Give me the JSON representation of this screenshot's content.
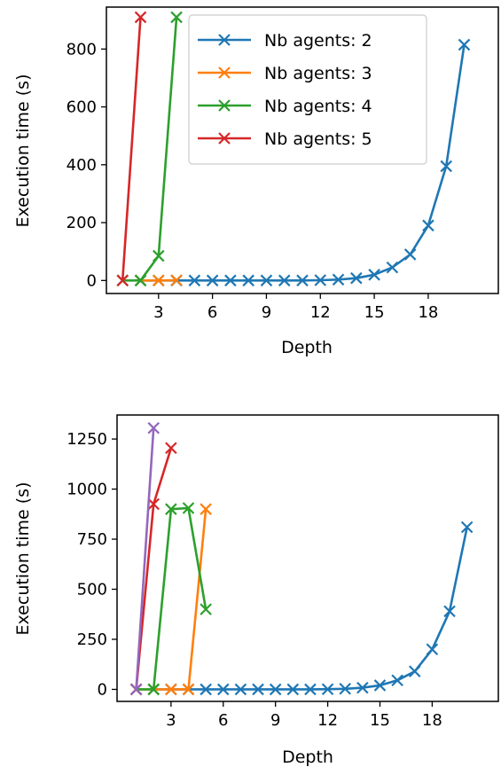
{
  "chart_data": [
    {
      "type": "line",
      "xlabel": "Depth",
      "ylabel": "Execution time (s)",
      "xlim": [
        0.1,
        21.9
      ],
      "ylim": [
        -45,
        945
      ],
      "xticks": [
        3,
        6,
        9,
        12,
        15,
        18
      ],
      "yticks": [
        0,
        200,
        400,
        600,
        800
      ],
      "grid": false,
      "legend": {
        "placement": "top-right",
        "entries": [
          "Nb agents: 2",
          "Nb agents: 3",
          "Nb agents: 4",
          "Nb agents: 5"
        ]
      },
      "series": [
        {
          "name": "Nb agents: 2",
          "color": "#1f77b4",
          "x": [
            2,
            3,
            4,
            5,
            6,
            7,
            8,
            9,
            10,
            11,
            12,
            13,
            14,
            15,
            16,
            17,
            18,
            19,
            20,
            21
          ],
          "y": [
            0,
            0,
            0,
            0,
            0,
            0,
            0,
            0,
            0,
            0,
            1,
            3,
            8,
            20,
            45,
            90,
            190,
            395,
            815,
            null
          ]
        },
        {
          "name": "Nb agents: 3",
          "color": "#ff7f0e",
          "x": [
            2,
            3,
            4
          ],
          "y": [
            0,
            0,
            1
          ]
        },
        {
          "name": "Nb agents: 4",
          "color": "#2ca02c",
          "x": [
            1,
            2,
            3,
            4
          ],
          "y": [
            0,
            0,
            85,
            910
          ]
        },
        {
          "name": "Nb agents: 5",
          "color": "#d62728",
          "x": [
            1,
            2
          ],
          "y": [
            0,
            910
          ]
        }
      ]
    },
    {
      "type": "line",
      "xlabel": "Depth",
      "ylabel": "Execution time (s)",
      "xlim": [
        -0.1,
        21.8
      ],
      "ylim": [
        -60,
        1370
      ],
      "xticks": [
        3,
        6,
        9,
        12,
        15,
        18
      ],
      "yticks": [
        0,
        250,
        500,
        750,
        1000,
        1250
      ],
      "grid": false,
      "series": [
        {
          "color": "#1f77b4",
          "x": [
            2,
            3,
            4,
            5,
            6,
            7,
            8,
            9,
            10,
            11,
            12,
            13,
            14,
            15,
            16,
            17,
            18,
            19,
            20
          ],
          "y": [
            0,
            0,
            0,
            0,
            0,
            0,
            0,
            0,
            0,
            0,
            1,
            3,
            8,
            20,
            45,
            90,
            200,
            390,
            810
          ]
        },
        {
          "color": "#ff7f0e",
          "x": [
            1,
            2,
            3,
            4,
            5
          ],
          "y": [
            0,
            0,
            0,
            0,
            900
          ]
        },
        {
          "color": "#2ca02c",
          "x": [
            1,
            2,
            3,
            4,
            5
          ],
          "y": [
            0,
            0,
            900,
            905,
            400
          ]
        },
        {
          "color": "#d62728",
          "x": [
            1,
            2,
            3
          ],
          "y": [
            0,
            925,
            1205
          ]
        },
        {
          "color": "#9467bd",
          "x": [
            1,
            2
          ],
          "y": [
            0,
            1305
          ]
        }
      ]
    }
  ]
}
